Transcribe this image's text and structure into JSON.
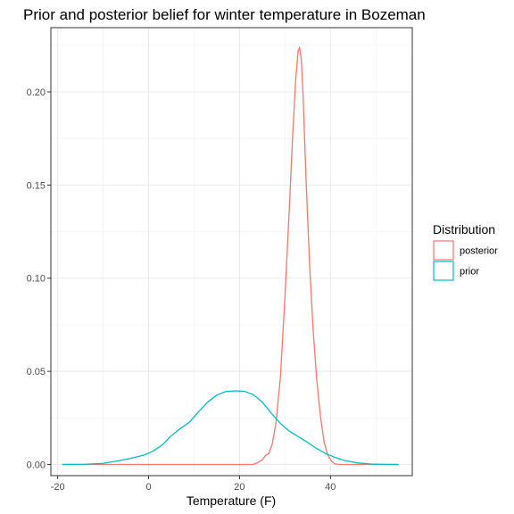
{
  "chart_data": {
    "type": "line",
    "title": "Prior and posterior belief for winter temperature in Bozeman",
    "xlabel": "Temperature (F)",
    "ylabel": "",
    "xlim": [
      -21.5,
      58
    ],
    "ylim": [
      -0.006,
      0.2345
    ],
    "x_ticks": [
      -20,
      0,
      20,
      40
    ],
    "y_ticks": [
      0.0,
      0.05,
      0.1,
      0.15,
      0.2
    ],
    "x_tick_labels": [
      "-20",
      "0",
      "20",
      "40"
    ],
    "y_tick_labels": [
      "0.00",
      "0.05",
      "0.10",
      "0.15",
      "0.20"
    ],
    "grid": true,
    "legend": {
      "title": "Distribution",
      "position": "right"
    },
    "series": [
      {
        "name": "posterior",
        "color": "#F8766D",
        "x": [
          -19,
          0,
          20,
          23,
          24,
          25,
          25.8,
          26.5,
          27.2,
          28,
          29,
          30,
          31,
          31.8,
          32.4,
          32.9,
          33.2,
          33.6,
          34,
          34.6,
          35.4,
          36.2,
          37,
          37.8,
          38.6,
          39.4,
          40.3,
          41,
          42,
          45,
          55
        ],
        "values": [
          0,
          0,
          0,
          0,
          0.001,
          0.0025,
          0.005,
          0.006,
          0.011,
          0.022,
          0.047,
          0.09,
          0.14,
          0.182,
          0.208,
          0.222,
          0.224,
          0.217,
          0.197,
          0.155,
          0.108,
          0.072,
          0.045,
          0.026,
          0.012,
          0.005,
          0.0015,
          0.0003,
          0,
          0,
          0
        ]
      },
      {
        "name": "prior",
        "color": "#00BFC4",
        "x": [
          -19,
          -14,
          -10,
          -7,
          -4,
          -1,
          1,
          3,
          5,
          7,
          9,
          11,
          13,
          15,
          17,
          19,
          21,
          23,
          25,
          27,
          29,
          31,
          33,
          35,
          37,
          39,
          41,
          43,
          46,
          49,
          52,
          55
        ],
        "values": [
          0,
          0.0001,
          0.0006,
          0.0018,
          0.0033,
          0.005,
          0.0072,
          0.0105,
          0.0155,
          0.0193,
          0.0227,
          0.0283,
          0.0335,
          0.0372,
          0.0392,
          0.0395,
          0.0393,
          0.0375,
          0.0335,
          0.0275,
          0.022,
          0.0178,
          0.0148,
          0.0118,
          0.0085,
          0.0058,
          0.0038,
          0.0022,
          0.0008,
          0.0002,
          4e-05,
          0
        ]
      }
    ]
  }
}
